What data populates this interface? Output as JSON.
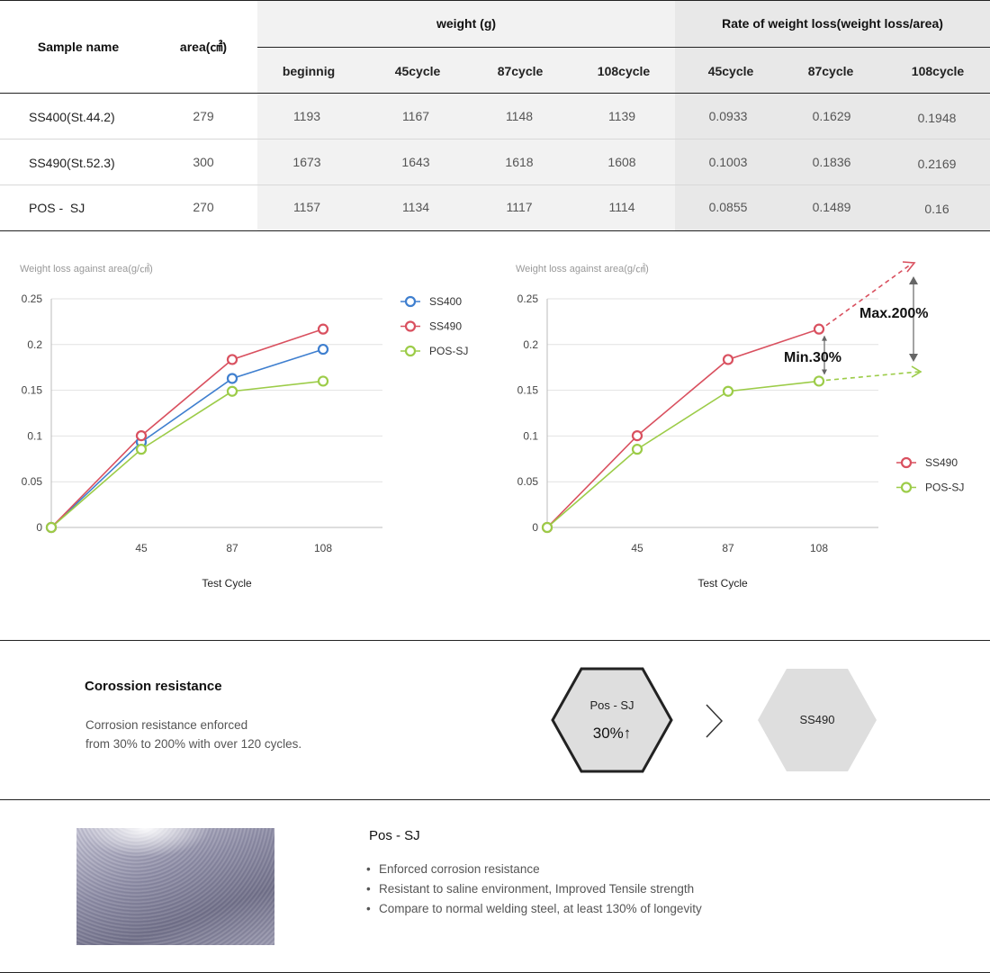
{
  "table": {
    "headers": {
      "sample_name": "Sample name",
      "area": "area(㎠)",
      "weight_group": "weight (g)",
      "rate_group": "Rate of weight loss(weight loss/area)",
      "weight_cols": [
        "beginnig",
        "45cycle",
        "87cycle",
        "108cycle"
      ],
      "rate_cols": [
        "45cycle",
        "87cycle",
        "108cycle"
      ]
    },
    "rows": [
      {
        "name": "SS400(St.44.2)",
        "area": "279",
        "weights": [
          "1193",
          "1167",
          "1148",
          "1139"
        ],
        "rates": [
          "0.0933",
          "0.1629",
          "0.1948"
        ]
      },
      {
        "name": "SS490(St.52.3)",
        "area": "300",
        "weights": [
          "1673",
          "1643",
          "1618",
          "1608"
        ],
        "rates": [
          "0.1003",
          "0.1836",
          "0.2169"
        ]
      },
      {
        "name": "POS -  SJ",
        "area": "270",
        "weights": [
          "1157",
          "1134",
          "1117",
          "1114"
        ],
        "rates": [
          "0.0855",
          "0.1489",
          "0.16"
        ]
      }
    ]
  },
  "chart_data": [
    {
      "type": "line",
      "title": "Weight loss against area(g/㎠)",
      "xlabel": "Test Cycle",
      "ylabel": "",
      "x": [
        0,
        45,
        87,
        108
      ],
      "x_tick_labels": [
        "",
        "45",
        "87",
        "108"
      ],
      "ylim": [
        0,
        0.25
      ],
      "y_ticks": [
        "0",
        "0.05",
        "0.1",
        "0.15",
        "0.2",
        "0.25"
      ],
      "grid": true,
      "legend": "top-right",
      "series": [
        {
          "name": "SS400",
          "values": [
            0,
            0.0933,
            0.1629,
            0.1948
          ],
          "color": "#3f7fcf"
        },
        {
          "name": "SS490",
          "values": [
            0,
            0.1003,
            0.1836,
            0.2169
          ],
          "color": "#d9505f"
        },
        {
          "name": "POS-SJ",
          "values": [
            0,
            0.0855,
            0.1489,
            0.16
          ],
          "color": "#9ccc48"
        }
      ]
    },
    {
      "type": "line",
      "title": "Weight loss against area(g/㎠)",
      "xlabel": "Test Cycle",
      "ylabel": "",
      "x": [
        0,
        45,
        87,
        108
      ],
      "x_tick_labels": [
        "",
        "45",
        "87",
        "108"
      ],
      "ylim": [
        0,
        0.25
      ],
      "y_ticks": [
        "0",
        "0.05",
        "0.1",
        "0.15",
        "0.2",
        "0.25"
      ],
      "grid": true,
      "legend": "bottom-right",
      "series": [
        {
          "name": "SS490",
          "values": [
            0,
            0.1003,
            0.1836,
            0.2169
          ],
          "color": "#d9505f"
        },
        {
          "name": "POS-SJ",
          "values": [
            0,
            0.0855,
            0.1489,
            0.16
          ],
          "color": "#9ccc48"
        }
      ],
      "annotations": [
        "Max.200%",
        "Min.30%"
      ]
    }
  ],
  "corrosion": {
    "title": "Corossion resistance",
    "desc_line1": "Corrosion resistance enforced",
    "desc_line2": "from 30% to 200% with over 120 cycles.",
    "hex1_label": "Pos - SJ",
    "hex1_value": "30%↑",
    "compare_symbol": ">",
    "hex2_label": "SS490"
  },
  "product": {
    "title": "Pos - SJ",
    "bullets": [
      "Enforced corrosion resistance",
      "Resistant to saline environment, Improved Tensile strength",
      "Compare to normal welding steel, at least 130% of longevity"
    ],
    "photo": "brushed-stainless-steel-photo"
  }
}
